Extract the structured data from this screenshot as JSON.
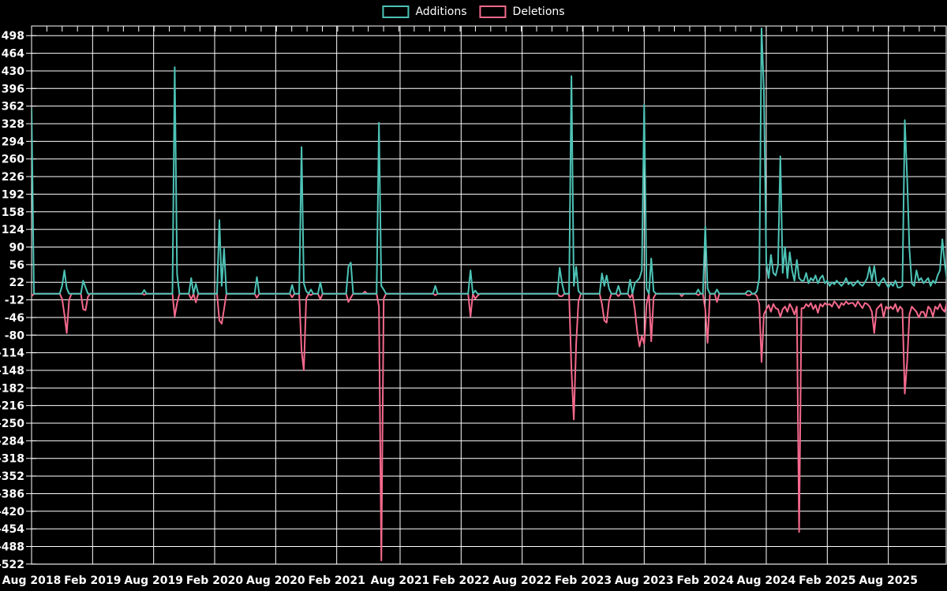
{
  "legend": {
    "additions_label": "Additions",
    "deletions_label": "Deletions"
  },
  "colors": {
    "background": "#000000",
    "grid": "#ffffff",
    "text": "#ffffff",
    "additions": "#4dc3b6",
    "deletions": "#f5698c"
  },
  "chart_data": {
    "type": "line",
    "title": "",
    "xlabel": "",
    "ylabel": "",
    "legend_position": "top-center",
    "grid": true,
    "y_ticks": [
      498,
      464,
      430,
      396,
      362,
      328,
      294,
      260,
      226,
      192,
      158,
      124,
      90,
      56,
      22,
      -12,
      -46,
      -80,
      -114,
      -148,
      -182,
      -216,
      -250,
      -284,
      -318,
      -352,
      -386,
      -420,
      -454,
      -488,
      -522
    ],
    "ylim": [
      -540,
      516
    ],
    "x_tick_labels": [
      "Aug 2018",
      "Feb 2019",
      "Aug 2019",
      "Feb 2020",
      "Aug 2020",
      "Feb 2021",
      "Aug 2021",
      "Feb 2022",
      "Aug 2022",
      "Feb 2023",
      "Aug 2023",
      "Feb 2024",
      "Aug 2024",
      "Feb 2025",
      "Aug 2025"
    ],
    "x_tick_weeks": [
      0,
      26,
      52,
      78,
      104,
      130,
      157,
      183,
      209,
      235,
      261,
      287,
      313,
      339,
      365
    ],
    "x_unit": "week_index_from_Aug_2018",
    "weeks_total": 391,
    "series_names": [
      "Additions",
      "Deletions"
    ],
    "baseline_value": 0,
    "events": [
      [
        0,
        358,
        -5
      ],
      [
        13,
        15,
        -10
      ],
      [
        14,
        45,
        -40
      ],
      [
        15,
        10,
        -76
      ],
      [
        16,
        0,
        -12
      ],
      [
        22,
        25,
        -30
      ],
      [
        23,
        12,
        -32
      ],
      [
        24,
        0,
        -6
      ],
      [
        48,
        7,
        -2
      ],
      [
        61,
        437,
        -44
      ],
      [
        62,
        37,
        -18
      ],
      [
        68,
        30,
        -11
      ],
      [
        70,
        19,
        -17
      ],
      [
        80,
        142,
        -52
      ],
      [
        81,
        15,
        -58
      ],
      [
        82,
        87,
        -30
      ],
      [
        96,
        32,
        -8
      ],
      [
        111,
        17,
        -7
      ],
      [
        115,
        283,
        -110
      ],
      [
        116,
        20,
        -148
      ],
      [
        117,
        5,
        -10
      ],
      [
        119,
        8,
        -3
      ],
      [
        123,
        22,
        -11
      ],
      [
        135,
        52,
        -16
      ],
      [
        136,
        60,
        -8
      ],
      [
        142,
        0,
        4
      ],
      [
        148,
        330,
        -25
      ],
      [
        149,
        15,
        -515
      ],
      [
        150,
        8,
        -10
      ],
      [
        172,
        15,
        -3
      ],
      [
        187,
        45,
        -44
      ],
      [
        189,
        6,
        -10
      ],
      [
        190,
        0,
        -4
      ],
      [
        225,
        50,
        -5
      ],
      [
        226,
        20,
        -5
      ],
      [
        230,
        420,
        -145
      ],
      [
        231,
        15,
        -243
      ],
      [
        232,
        52,
        -97
      ],
      [
        233,
        5,
        -15
      ],
      [
        243,
        39,
        -20
      ],
      [
        244,
        15,
        -52
      ],
      [
        245,
        35,
        -56
      ],
      [
        246,
        10,
        -15
      ],
      [
        250,
        15,
        -5
      ],
      [
        255,
        27,
        -8
      ],
      [
        257,
        20,
        -30
      ],
      [
        258,
        25,
        -72
      ],
      [
        259,
        30,
        -102
      ],
      [
        260,
        45,
        -82
      ],
      [
        261,
        365,
        -97
      ],
      [
        262,
        10,
        -20
      ],
      [
        264,
        68,
        -92
      ],
      [
        265,
        5,
        -8
      ],
      [
        277,
        0,
        -5
      ],
      [
        284,
        8,
        -3
      ],
      [
        287,
        130,
        -30
      ],
      [
        288,
        10,
        -95
      ],
      [
        292,
        8,
        -16
      ],
      [
        305,
        5,
        -3
      ],
      [
        306,
        5,
        -3
      ],
      [
        309,
        5,
        -5
      ],
      [
        310,
        30,
        -20
      ],
      [
        311,
        512,
        -132
      ],
      [
        312,
        390,
        -40
      ],
      [
        313,
        60,
        -30
      ],
      [
        314,
        30,
        -22
      ],
      [
        315,
        75,
        -35
      ],
      [
        316,
        40,
        -20
      ],
      [
        317,
        35,
        -28
      ],
      [
        318,
        55,
        -30
      ],
      [
        319,
        265,
        -45
      ],
      [
        320,
        40,
        -30
      ],
      [
        321,
        90,
        -25
      ],
      [
        322,
        30,
        -35
      ],
      [
        323,
        80,
        -20
      ],
      [
        324,
        45,
        -28
      ],
      [
        325,
        25,
        -40
      ],
      [
        326,
        65,
        -25
      ],
      [
        327,
        30,
        -460
      ],
      [
        328,
        25,
        -28
      ],
      [
        329,
        25,
        -28
      ],
      [
        330,
        40,
        -20
      ],
      [
        331,
        20,
        -25
      ],
      [
        332,
        30,
        -18
      ],
      [
        333,
        25,
        -30
      ],
      [
        334,
        35,
        -22
      ],
      [
        335,
        20,
        -37
      ],
      [
        336,
        30,
        -20
      ],
      [
        337,
        35,
        -25
      ],
      [
        338,
        20,
        -18
      ],
      [
        339,
        25,
        -22
      ],
      [
        340,
        15,
        -20
      ],
      [
        341,
        22,
        -25
      ],
      [
        342,
        18,
        -15
      ],
      [
        343,
        25,
        -20
      ],
      [
        344,
        20,
        -28
      ],
      [
        345,
        15,
        -18
      ],
      [
        346,
        20,
        -22
      ],
      [
        347,
        30,
        -15
      ],
      [
        348,
        18,
        -20
      ],
      [
        349,
        22,
        -18
      ],
      [
        350,
        15,
        -18
      ],
      [
        351,
        20,
        -25
      ],
      [
        352,
        25,
        -15
      ],
      [
        353,
        18,
        -22
      ],
      [
        354,
        15,
        -28
      ],
      [
        355,
        22,
        -18
      ],
      [
        356,
        30,
        -20
      ],
      [
        357,
        52,
        -25
      ],
      [
        358,
        25,
        -35
      ],
      [
        359,
        53,
        -76
      ],
      [
        360,
        20,
        -30
      ],
      [
        361,
        15,
        -25
      ],
      [
        362,
        25,
        -20
      ],
      [
        363,
        30,
        -46
      ],
      [
        364,
        20,
        -25
      ],
      [
        365,
        12,
        -30
      ],
      [
        366,
        20,
        -25
      ],
      [
        367,
        15,
        -30
      ],
      [
        368,
        25,
        -20
      ],
      [
        369,
        12,
        -35
      ],
      [
        370,
        12,
        -25
      ],
      [
        371,
        15,
        -30
      ],
      [
        372,
        335,
        -193
      ],
      [
        373,
        224,
        -132
      ],
      [
        374,
        85,
        -40
      ],
      [
        375,
        20,
        -25
      ],
      [
        376,
        15,
        -30
      ],
      [
        377,
        45,
        -35
      ],
      [
        378,
        25,
        -46
      ],
      [
        379,
        30,
        -35
      ],
      [
        380,
        20,
        -35
      ],
      [
        381,
        25,
        -46
      ],
      [
        382,
        30,
        -25
      ],
      [
        383,
        15,
        -30
      ],
      [
        384,
        25,
        -44
      ],
      [
        385,
        20,
        -25
      ],
      [
        386,
        35,
        -30
      ],
      [
        387,
        45,
        -20
      ],
      [
        388,
        105,
        -30
      ],
      [
        389,
        60,
        -35
      ],
      [
        390,
        25,
        -15
      ]
    ]
  }
}
